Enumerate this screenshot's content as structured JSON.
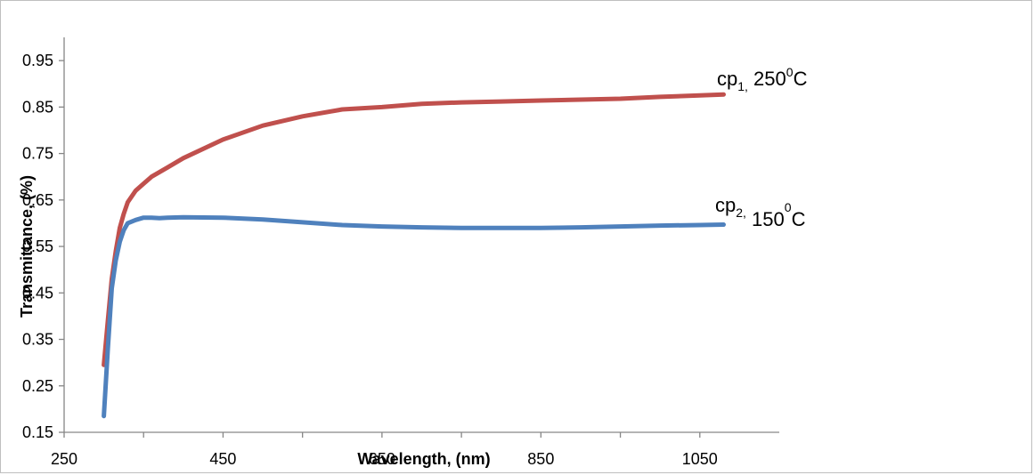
{
  "chart_data": {
    "type": "line",
    "title": "",
    "xlabel": "Wavelength, (nm)",
    "ylabel": "Transmittance, (%)",
    "xlim": [
      250,
      1150
    ],
    "ylim": [
      0.15,
      1.0
    ],
    "xticks": [
      250,
      450,
      650,
      850,
      1050
    ],
    "yticks": [
      0.15,
      0.25,
      0.35,
      0.45,
      0.55,
      0.65,
      0.75,
      0.85,
      0.95
    ],
    "xtick_labels": [
      "250",
      "450",
      "650",
      "850",
      "1050"
    ],
    "ytick_labels": [
      "0.15",
      "0.25",
      "0.35",
      "0.45",
      "0.55",
      "0.65",
      "0.75",
      "0.85",
      "0.95"
    ],
    "grid": false,
    "legend": "none",
    "series": [
      {
        "color": "#c0504d",
        "x": [
          300,
          305,
          310,
          315,
          320,
          325,
          330,
          340,
          350,
          360,
          380,
          400,
          450,
          500,
          550,
          600,
          650,
          700,
          750,
          800,
          850,
          900,
          950,
          1000,
          1050,
          1080
        ],
        "y": [
          0.295,
          0.39,
          0.48,
          0.54,
          0.59,
          0.62,
          0.645,
          0.67,
          0.685,
          0.7,
          0.72,
          0.74,
          0.78,
          0.81,
          0.83,
          0.845,
          0.85,
          0.857,
          0.86,
          0.862,
          0.864,
          0.866,
          0.868,
          0.872,
          0.875,
          0.877
        ]
      },
      {
        "color": "#4f81bd",
        "x": [
          300,
          305,
          310,
          315,
          320,
          325,
          330,
          340,
          350,
          360,
          370,
          380,
          400,
          450,
          500,
          550,
          600,
          650,
          700,
          750,
          800,
          850,
          900,
          950,
          1000,
          1050,
          1080
        ],
        "y": [
          0.185,
          0.33,
          0.46,
          0.52,
          0.56,
          0.585,
          0.6,
          0.607,
          0.612,
          0.612,
          0.611,
          0.612,
          0.613,
          0.612,
          0.608,
          0.602,
          0.596,
          0.593,
          0.591,
          0.59,
          0.59,
          0.59,
          0.591,
          0.593,
          0.595,
          0.596,
          0.597
        ]
      }
    ],
    "annotations": [
      {
        "base": "cp",
        "sub": "1,",
        "value": " 250",
        "sup": "0",
        "unit": "C"
      },
      {
        "base": "cp",
        "sub": "2,",
        "value": " 150",
        "sup": "0",
        "unit": "C"
      }
    ]
  }
}
